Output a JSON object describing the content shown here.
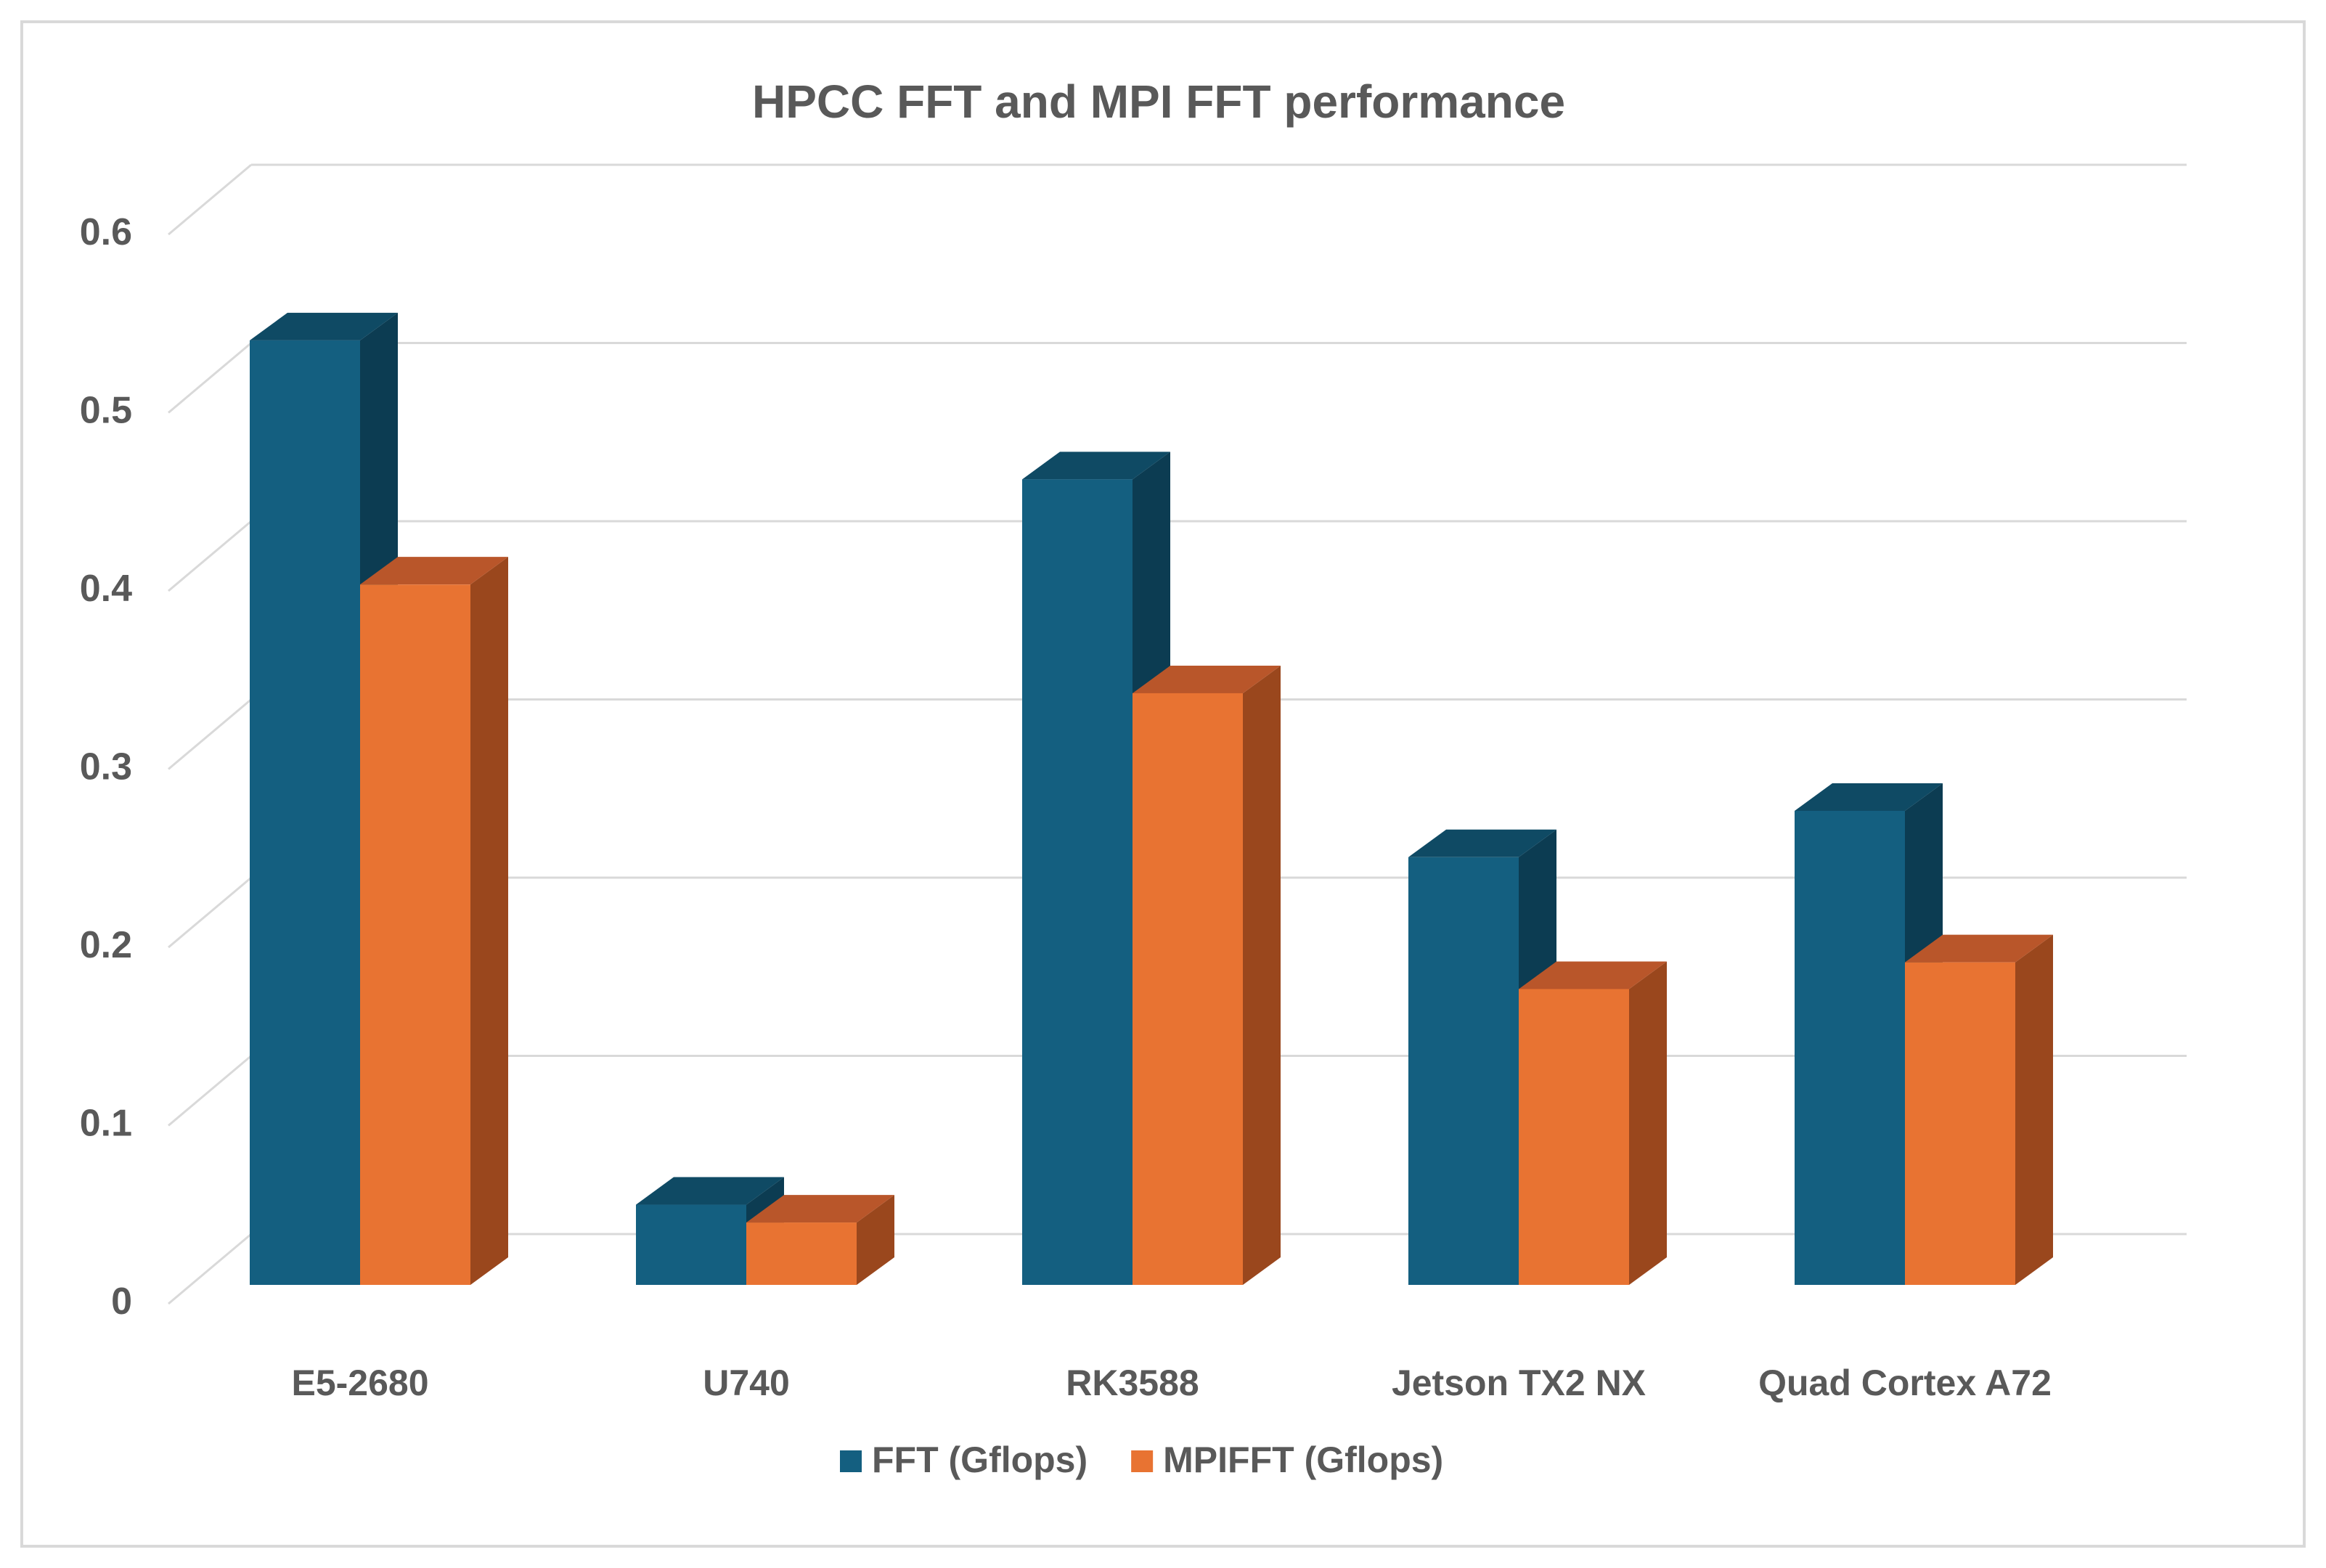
{
  "chart_data": {
    "type": "bar",
    "title": "HPCC FFT and MPI FFT performance",
    "xlabel": "",
    "ylabel": "",
    "categories": [
      "E5-2680",
      "U740",
      "RK3588",
      "Jetson TX2 NX",
      "Quad Cortex A72"
    ],
    "series": [
      {
        "name": "FFT (Gflops)",
        "values": [
          0.53,
          0.045,
          0.452,
          0.24,
          0.266
        ],
        "color": "#145f80",
        "side_color": "#0c3c52",
        "top_color": "#0f4a64"
      },
      {
        "name": "MPIFFT (Gflops)",
        "values": [
          0.393,
          0.035,
          0.332,
          0.166,
          0.181
        ],
        "color": "#e87332",
        "side_color": "#9a471d",
        "top_color": "#b9562a"
      }
    ],
    "ylim": [
      0,
      0.6
    ],
    "yticks": [
      "0",
      "0.1",
      "0.2",
      "0.3",
      "0.4",
      "0.5",
      "0.6"
    ],
    "grid": true,
    "legend_position": "bottom",
    "style": "3d-clustered-column"
  }
}
